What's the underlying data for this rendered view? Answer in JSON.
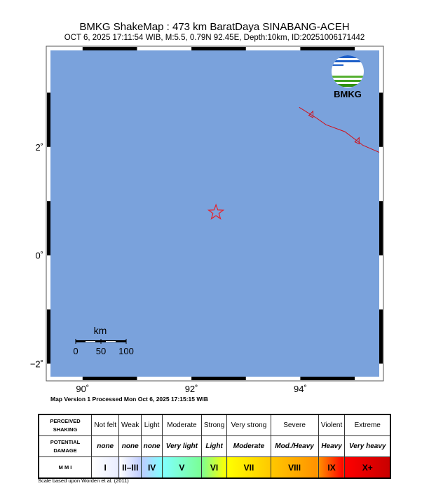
{
  "header": {
    "title": "BMKG ShakeMap : 473 km BaratDaya SINABANG-ACEH",
    "subtitle": "OCT 6, 2025 17:11:54 WIB, M:5.5, 0.79N 92.45E, Depth:10km, ID:20251006171442"
  },
  "map": {
    "lon_range": [
      89.41,
      95.45
    ],
    "lat_range": [
      -2.24,
      3.78
    ],
    "water_color": "#7aa2dc",
    "lon_ticks": [
      {
        "value": 90,
        "label": "90˚"
      },
      {
        "value": 92,
        "label": "92˚"
      },
      {
        "value": 94,
        "label": "94˚"
      }
    ],
    "lat_ticks": [
      {
        "value": 2,
        "label": "2˚"
      },
      {
        "value": 0,
        "label": "0˚"
      },
      {
        "value": -2,
        "label": "−2˚"
      }
    ],
    "epicenter": {
      "lon": 92.45,
      "lat": 0.79,
      "icon": "star-icon",
      "color": "#e8202a"
    },
    "fault": {
      "color": "#d0101a",
      "points": [
        [
          93.98,
          2.73
        ],
        [
          94.3,
          2.53
        ],
        [
          94.47,
          2.41
        ],
        [
          94.82,
          2.28
        ],
        [
          95.15,
          2.03
        ],
        [
          95.45,
          1.9
        ]
      ]
    },
    "logo": {
      "text": "BMKG"
    },
    "scale_bar": {
      "unit": "km",
      "labels": [
        "0",
        "50",
        "100"
      ]
    }
  },
  "version_text": "Map Version 1 Processed Mon Oct  6, 2025 17:15:15 WIB",
  "legend": {
    "row_headers": [
      "PERCEIVED SHAKING",
      "POTENTIAL DAMAGE",
      "M M I"
    ],
    "shaking": [
      "Not felt",
      "Weak",
      "Light",
      "Moderate",
      "Strong",
      "Very strong",
      "Severe",
      "Violent",
      "Extreme"
    ],
    "damage": [
      "none",
      "none",
      "none",
      "Very light",
      "Light",
      "Moderate",
      "Mod./Heavy",
      "Heavy",
      "Very heavy"
    ],
    "mmi": [
      "I",
      "II–III",
      "IV",
      "V",
      "VI",
      "VII",
      "VIII",
      "IX",
      "X+"
    ],
    "mmi_colors": [
      "#ffffff",
      "#bfccff",
      "#80ffff",
      "#7aff93",
      "#ffff00",
      "#ffc800",
      "#ff9100",
      "#ff0000",
      "#c80000"
    ]
  },
  "scale_note": "Scale based upon Worden et al. (2011)"
}
